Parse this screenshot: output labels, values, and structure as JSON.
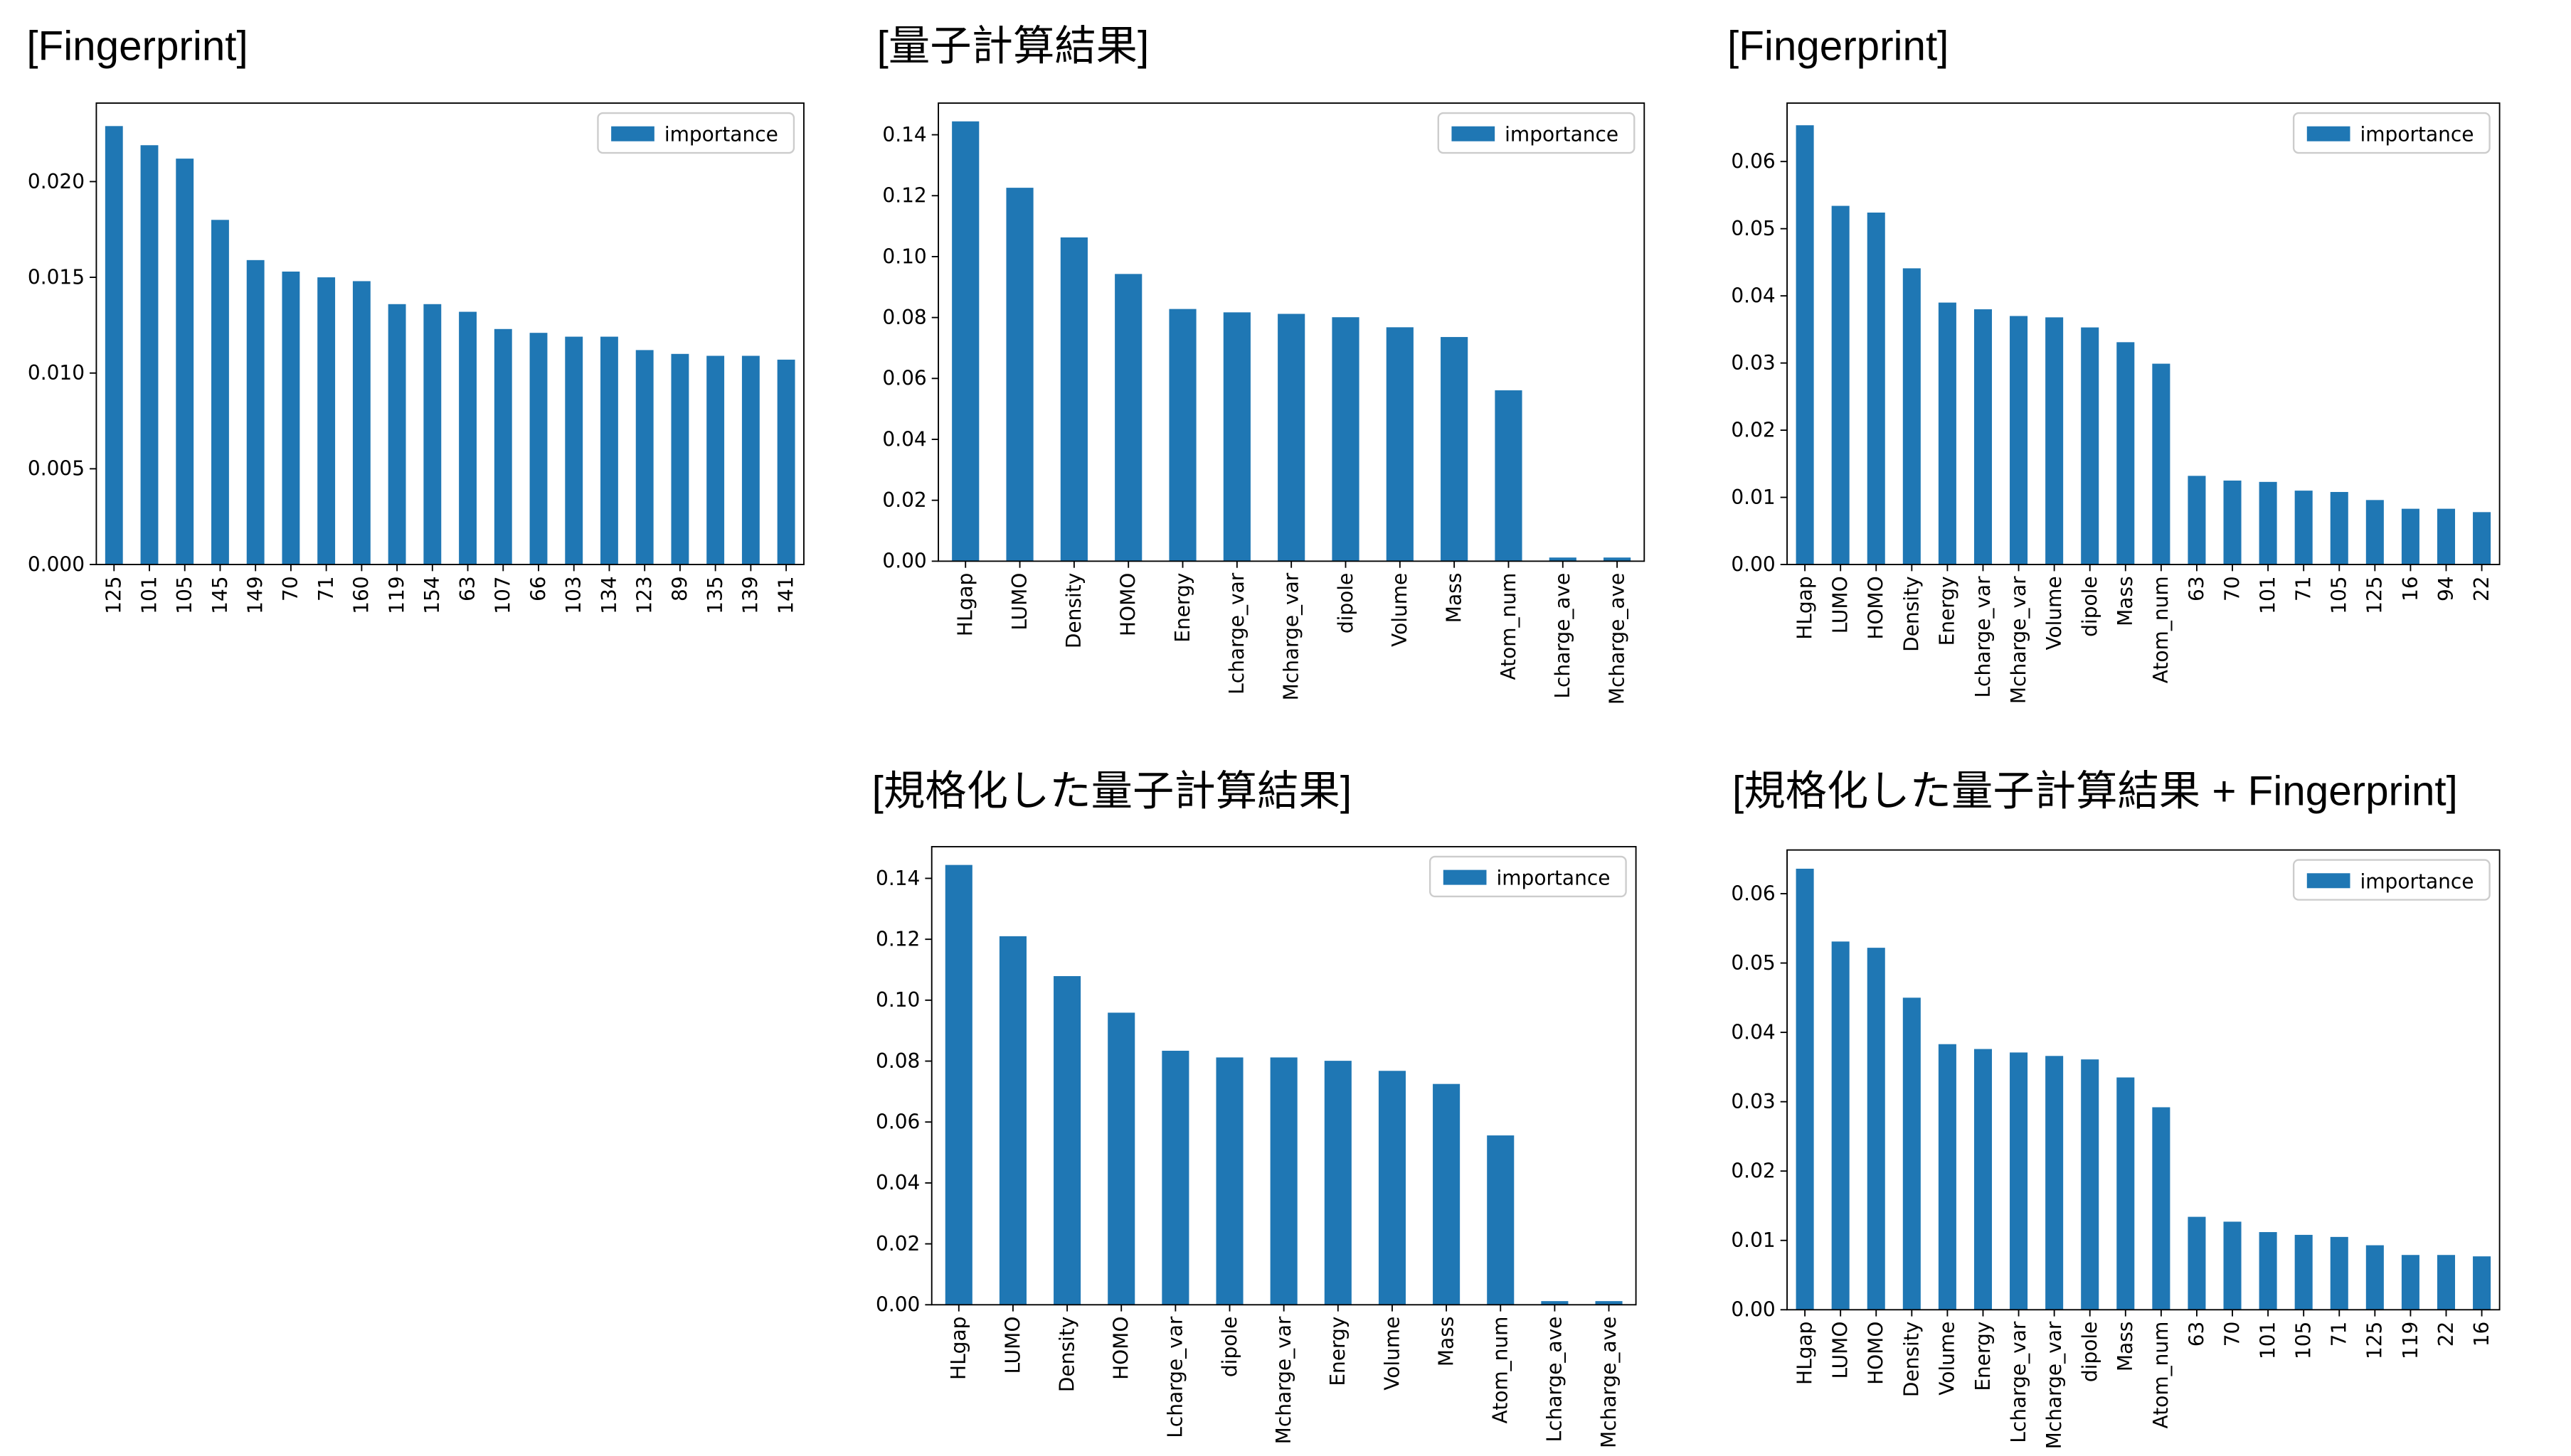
{
  "chart_data": [
    {
      "type": "bar",
      "title": "[Fingerprint]",
      "legend": "upper right",
      "categories": [
        "125",
        "101",
        "105",
        "145",
        "149",
        "70",
        "71",
        "160",
        "119",
        "154",
        "63",
        "107",
        "66",
        "103",
        "134",
        "123",
        "89",
        "135",
        "139",
        "141"
      ],
      "series": [
        {
          "name": "importance",
          "color": "#1f77b4",
          "values": [
            0.0229,
            0.0219,
            0.0212,
            0.018,
            0.0159,
            0.0153,
            0.015,
            0.0148,
            0.0136,
            0.0136,
            0.0132,
            0.0123,
            0.0121,
            0.0119,
            0.0119,
            0.0112,
            0.011,
            0.0109,
            0.0109,
            0.0107
          ]
        }
      ],
      "ylim": [
        0,
        0.0241
      ],
      "yticks": [
        {
          "value": 0,
          "label": "0.000"
        },
        {
          "value": 0.005,
          "label": "0.005"
        },
        {
          "value": 0.01,
          "label": "0.010"
        },
        {
          "value": 0.015,
          "label": "0.015"
        },
        {
          "value": 0.02,
          "label": "0.020"
        }
      ]
    },
    {
      "type": "bar",
      "title": "[量子計算結果]",
      "legend": "upper right",
      "categories": [
        "HLgap",
        "LUMO",
        "Density",
        "HOMO",
        "Energy",
        "Lcharge_var",
        "Mcharge_var",
        "dipole",
        "Volume",
        "Mass",
        "Atom_num",
        "Lcharge_ave",
        "Mcharge_ave"
      ],
      "series": [
        {
          "name": "importance",
          "color": "#1f77b4",
          "values": [
            0.1444,
            0.1226,
            0.1063,
            0.0943,
            0.0828,
            0.0817,
            0.0812,
            0.0801,
            0.0768,
            0.0736,
            0.0561,
            0.0012,
            0.0012
          ]
        }
      ],
      "ylim": [
        0,
        0.1504
      ],
      "yticks": [
        {
          "value": 0,
          "label": "0.00"
        },
        {
          "value": 0.02,
          "label": "0.02"
        },
        {
          "value": 0.04,
          "label": "0.04"
        },
        {
          "value": 0.06,
          "label": "0.06"
        },
        {
          "value": 0.08,
          "label": "0.08"
        },
        {
          "value": 0.1,
          "label": "0.10"
        },
        {
          "value": 0.12,
          "label": "0.12"
        },
        {
          "value": 0.14,
          "label": "0.14"
        }
      ]
    },
    {
      "type": "bar",
      "title": "[Fingerprint]",
      "legend": "upper right",
      "categories": [
        "HLgap",
        "LUMO",
        "HOMO",
        "Density",
        "Energy",
        "Lcharge_var",
        "Mcharge_var",
        "Volume",
        "dipole",
        "Mass",
        "Atom_num",
        "63",
        "70",
        "101",
        "71",
        "105",
        "125",
        "16",
        "94",
        "22"
      ],
      "series": [
        {
          "name": "importance",
          "color": "#1f77b4",
          "values": [
            0.0654,
            0.0534,
            0.0524,
            0.0441,
            0.039,
            0.038,
            0.037,
            0.0368,
            0.0353,
            0.0331,
            0.0299,
            0.0132,
            0.0125,
            0.0123,
            0.011,
            0.0108,
            0.0096,
            0.0083,
            0.0083,
            0.0078
          ]
        }
      ],
      "ylim": [
        0,
        0.0687
      ],
      "yticks": [
        {
          "value": 0,
          "label": "0.00"
        },
        {
          "value": 0.01,
          "label": "0.01"
        },
        {
          "value": 0.02,
          "label": "0.02"
        },
        {
          "value": 0.03,
          "label": "0.03"
        },
        {
          "value": 0.04,
          "label": "0.04"
        },
        {
          "value": 0.05,
          "label": "0.05"
        },
        {
          "value": 0.06,
          "label": "0.06"
        }
      ]
    },
    {
      "type": "bar",
      "title": "[規格化した量子計算結果]",
      "legend": "upper right",
      "categories": [
        "HLgap",
        "LUMO",
        "Density",
        "HOMO",
        "Lcharge_var",
        "dipole",
        "Mcharge_var",
        "Energy",
        "Volume",
        "Mass",
        "Atom_num",
        "Lcharge_ave",
        "Mcharge_ave"
      ],
      "series": [
        {
          "name": "importance",
          "color": "#1f77b4",
          "values": [
            0.1444,
            0.121,
            0.1079,
            0.0959,
            0.0834,
            0.0812,
            0.0812,
            0.0801,
            0.0768,
            0.0725,
            0.0556,
            0.0012,
            0.0012
          ]
        }
      ],
      "ylim": [
        0,
        0.1504
      ],
      "yticks": [
        {
          "value": 0,
          "label": "0.00"
        },
        {
          "value": 0.02,
          "label": "0.02"
        },
        {
          "value": 0.04,
          "label": "0.04"
        },
        {
          "value": 0.06,
          "label": "0.06"
        },
        {
          "value": 0.08,
          "label": "0.08"
        },
        {
          "value": 0.1,
          "label": "0.10"
        },
        {
          "value": 0.12,
          "label": "0.12"
        },
        {
          "value": 0.14,
          "label": "0.14"
        }
      ]
    },
    {
      "type": "bar",
      "title": "[規格化した量子計算結果 + Fingerprint]",
      "legend": "upper right",
      "categories": [
        "HLgap",
        "LUMO",
        "HOMO",
        "Density",
        "Volume",
        "Energy",
        "Lcharge_var",
        "Mcharge_var",
        "dipole",
        "Mass",
        "Atom_num",
        "63",
        "70",
        "101",
        "105",
        "71",
        "125",
        "119",
        "22",
        "16"
      ],
      "series": [
        {
          "name": "importance",
          "color": "#1f77b4",
          "values": [
            0.0636,
            0.0531,
            0.0522,
            0.045,
            0.0383,
            0.0376,
            0.0371,
            0.0366,
            0.0361,
            0.0335,
            0.0292,
            0.0134,
            0.0127,
            0.0112,
            0.0108,
            0.0105,
            0.0093,
            0.0079,
            0.0079,
            0.0077
          ]
        }
      ],
      "ylim": [
        0,
        0.0663
      ],
      "yticks": [
        {
          "value": 0,
          "label": "0.00"
        },
        {
          "value": 0.01,
          "label": "0.01"
        },
        {
          "value": 0.02,
          "label": "0.02"
        },
        {
          "value": 0.03,
          "label": "0.03"
        },
        {
          "value": 0.04,
          "label": "0.04"
        },
        {
          "value": 0.05,
          "label": "0.05"
        },
        {
          "value": 0.06,
          "label": "0.06"
        }
      ]
    }
  ]
}
